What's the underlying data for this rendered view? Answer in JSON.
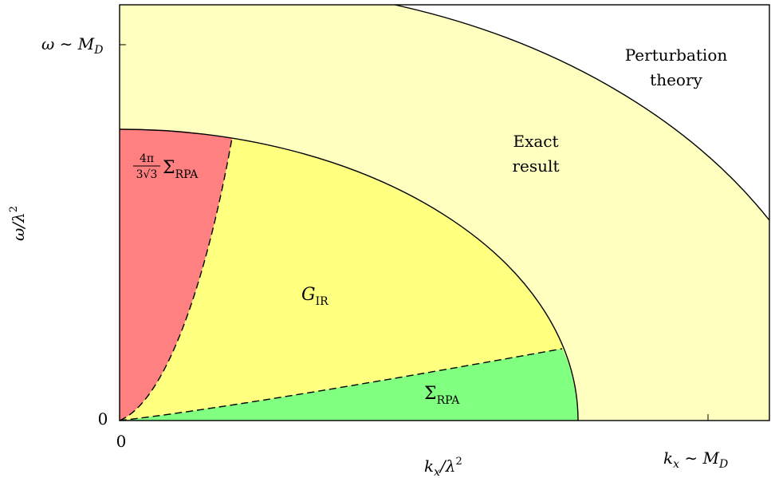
{
  "diagram": {
    "regions": [
      {
        "id": "perturbation",
        "label_lines": [
          "Perturbation",
          "theory"
        ],
        "color": "#ffffff"
      },
      {
        "id": "exact",
        "label_lines": [
          "Exact",
          "result"
        ],
        "color": "#ffffc0"
      },
      {
        "id": "g_ir",
        "label": "G",
        "label_sub": "IR",
        "color": "#ffff80"
      },
      {
        "id": "sigma_rpa",
        "label": "Σ",
        "label_sub": "RPA",
        "color": "#80ff80"
      },
      {
        "id": "sigma_rpa_scaled",
        "label_num": "4π",
        "label_den": "3√3",
        "label": "Σ",
        "label_sub": "RPA",
        "color": "#ff8080"
      }
    ],
    "axes": {
      "x_label": "k",
      "x_label_sub": "x",
      "x_label_rest": "/λ",
      "x_label_sup": "2",
      "y_label": "ω/λ",
      "y_label_sup": "2",
      "x_origin_tick": "0",
      "y_origin_tick": "0",
      "x_tick_label": "k",
      "x_tick_sub": "x",
      "x_tick_rest": " ∼ M",
      "x_tick_rest_sub": "D",
      "y_tick_label": "ω ∼ M",
      "y_tick_sub": "D"
    },
    "boundaries": {
      "exact_boundary": "solid",
      "perturbation_boundary": "solid",
      "rpa_boundaries": "dashed"
    }
  }
}
